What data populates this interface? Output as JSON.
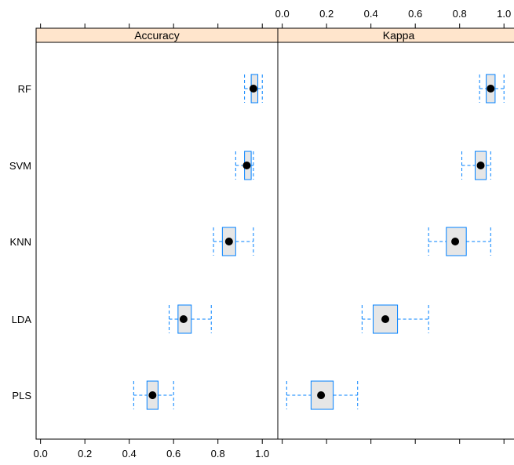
{
  "chart_data": {
    "type": "box",
    "categories": [
      "RF",
      "SVM",
      "KNN",
      "LDA",
      "PLS"
    ],
    "xlim": [
      -0.02,
      1.07
    ],
    "ticks": [
      "0.0",
      "0.2",
      "0.4",
      "0.6",
      "0.8",
      "1.0"
    ],
    "colors": {
      "strip": "#ffe5cc",
      "box_fill": "#e6e6e6",
      "box_line": "#0080ff",
      "median": "#000000"
    },
    "panels": [
      {
        "title": "Accuracy",
        "series": [
          {
            "model": "RF",
            "min": 0.92,
            "q1": 0.95,
            "median": 0.96,
            "q3": 0.98,
            "max": 1.0
          },
          {
            "model": "SVM",
            "min": 0.88,
            "q1": 0.92,
            "median": 0.93,
            "q3": 0.95,
            "max": 0.96
          },
          {
            "model": "KNN",
            "min": 0.78,
            "q1": 0.82,
            "median": 0.85,
            "q3": 0.88,
            "max": 0.96
          },
          {
            "model": "LDA",
            "min": 0.58,
            "q1": 0.62,
            "median": 0.645,
            "q3": 0.68,
            "max": 0.77
          },
          {
            "model": "PLS",
            "min": 0.42,
            "q1": 0.48,
            "median": 0.505,
            "q3": 0.53,
            "max": 0.6
          }
        ]
      },
      {
        "title": "Kappa",
        "series": [
          {
            "model": "RF",
            "min": 0.89,
            "q1": 0.92,
            "median": 0.94,
            "q3": 0.96,
            "max": 1.0
          },
          {
            "model": "SVM",
            "min": 0.81,
            "q1": 0.87,
            "median": 0.895,
            "q3": 0.92,
            "max": 0.94
          },
          {
            "model": "KNN",
            "min": 0.66,
            "q1": 0.74,
            "median": 0.78,
            "q3": 0.83,
            "max": 0.94
          },
          {
            "model": "LDA",
            "min": 0.36,
            "q1": 0.41,
            "median": 0.465,
            "q3": 0.52,
            "max": 0.66
          },
          {
            "model": "PLS",
            "min": 0.02,
            "q1": 0.13,
            "median": 0.175,
            "q3": 0.23,
            "max": 0.34
          }
        ]
      }
    ]
  }
}
